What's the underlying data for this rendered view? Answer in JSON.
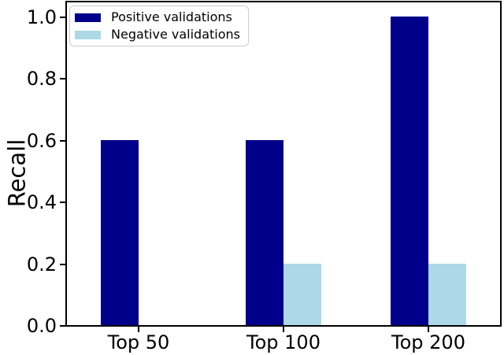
{
  "chart_data": {
    "type": "bar",
    "title": "",
    "xlabel": "",
    "ylabel": "Recall",
    "categories": [
      "Top 50",
      "Top 100",
      "Top 200"
    ],
    "series": [
      {
        "name": "Positive validations",
        "color": "#00008B",
        "values": [
          0.6,
          0.6,
          1.0
        ]
      },
      {
        "name": "Negative validations",
        "color": "#ADD8E6",
        "values": [
          0.0,
          0.2,
          0.2
        ]
      }
    ],
    "yticks": [
      "0.0",
      "0.2",
      "0.4",
      "0.6",
      "0.8",
      "1.0"
    ],
    "ylim": [
      0,
      1.05
    ],
    "grid": false,
    "legend": {
      "position": "upper left"
    },
    "axis_color": "#000000",
    "background_color": "#ffffff"
  }
}
